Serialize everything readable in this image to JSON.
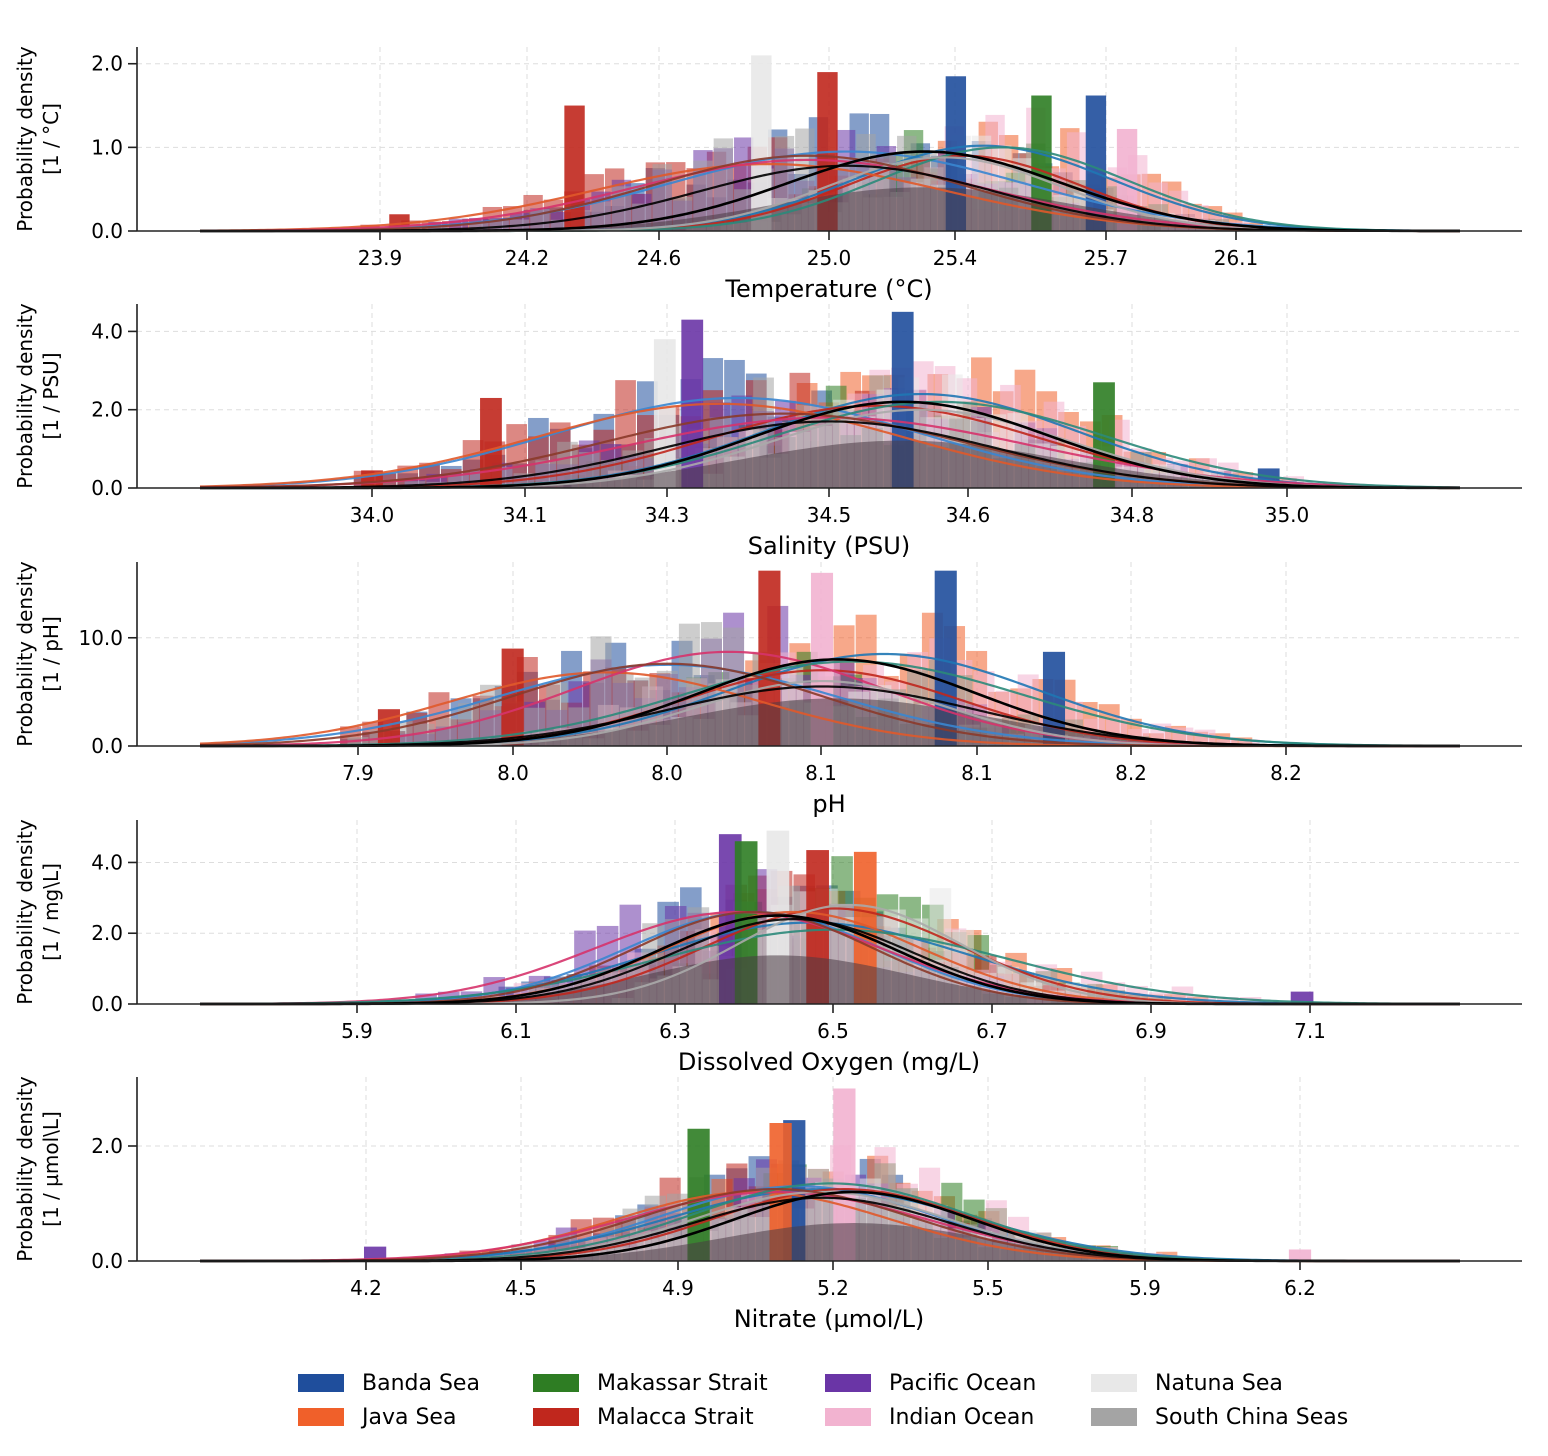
{
  "chart_data": {
    "type": "histogram+kde (stacked panels)",
    "series": [
      {
        "name": "Banda Sea",
        "color": "#1f4e9c"
      },
      {
        "name": "Java Sea",
        "color": "#f0602a"
      },
      {
        "name": "Makassar Strait",
        "color": "#2e7d23"
      },
      {
        "name": "Malacca Strait",
        "color": "#c0271d"
      },
      {
        "name": "Pacific Ocean",
        "color": "#6a35a6"
      },
      {
        "name": "Indian Ocean",
        "color": "#f2b3d0"
      },
      {
        "name": "Natuna Sea",
        "color": "#e8e8e8"
      },
      {
        "name": "South China Seas",
        "color": "#a4a4a4"
      }
    ],
    "kde_colors": [
      "#000000",
      "#3a86d0",
      "#1f77b4",
      "#c0271d",
      "#e0592a",
      "#d6336c",
      "#2b8a7a",
      "#aaaaaa",
      "#8b3a2a"
    ],
    "legend": {
      "placement": "bottom-center",
      "items": [
        "Banda Sea",
        "Makassar Strait",
        "Pacific Ocean",
        "Natuna Sea",
        "Java Sea",
        "Malacca Strait",
        "Indian Ocean",
        "South China Seas"
      ]
    },
    "panels": [
      {
        "id": "temperature",
        "xlabel": "Temperature (°C)",
        "ylabel_line1": "Probability density",
        "ylabel_line2": "[1 / °C]",
        "xlim": [
          23.5,
          26.8
        ],
        "ylim": [
          0,
          2.2
        ],
        "xticks": [
          23.9,
          24.2,
          24.6,
          25.0,
          25.4,
          25.7,
          26.1
        ],
        "xtick_labels": [
          "23.9",
          "24.2",
          "24.6",
          "25.0",
          "25.4",
          "25.7",
          "26.1"
        ],
        "yticks": [
          0.0,
          1.0,
          2.0
        ],
        "ytick_labels": [
          "0.0",
          "1.0",
          "2.0"
        ],
        "kde_overall": {
          "mean": 25.3,
          "sd": 0.35,
          "peak": 0.95
        },
        "kde_curves": [
          {
            "mean": 25.1,
            "sd": 0.45,
            "peak": 0.95
          },
          {
            "mean": 25.45,
            "sd": 0.33,
            "peak": 1.02
          },
          {
            "mean": 25.4,
            "sd": 0.3,
            "peak": 0.9
          },
          {
            "mean": 24.9,
            "sd": 0.45,
            "peak": 0.8
          },
          {
            "mean": 25.0,
            "sd": 0.45,
            "peak": 0.85
          },
          {
            "mean": 25.5,
            "sd": 0.32,
            "peak": 1.0
          },
          {
            "mean": 25.35,
            "sd": 0.3,
            "peak": 0.88
          },
          {
            "mean": 25.0,
            "sd": 0.4,
            "peak": 0.9
          },
          {
            "mean": 25.1,
            "sd": 0.38,
            "peak": 0.78
          }
        ],
        "hist_peaks": [
          {
            "series": "Banda Sea",
            "x": 25.38,
            "y": 1.85
          },
          {
            "series": "Natuna Sea",
            "x": 24.88,
            "y": 2.1
          },
          {
            "series": "Malacca Strait",
            "x": 25.05,
            "y": 1.9
          },
          {
            "series": "Makassar Strait",
            "x": 25.6,
            "y": 1.62
          },
          {
            "series": "Banda Sea",
            "x": 25.74,
            "y": 1.62
          },
          {
            "series": "Malacca Strait",
            "x": 24.4,
            "y": 1.5
          },
          {
            "series": "Indian Ocean",
            "x": 25.82,
            "y": 1.22
          },
          {
            "series": "Malacca Strait",
            "x": 23.95,
            "y": 0.2
          }
        ]
      },
      {
        "id": "salinity",
        "xlabel": "Salinity (PSU)",
        "ylabel_line1": "Probability density",
        "ylabel_line2": "[1 / PSU]",
        "xlim": [
          33.75,
          35.2
        ],
        "ylim": [
          0,
          4.7
        ],
        "xticks": [
          34.0,
          34.15,
          34.3,
          34.5,
          34.65,
          34.8,
          35.0
        ],
        "xtick_labels": [
          "34.0",
          "34.1",
          "34.3",
          "34.5",
          "34.6",
          "34.8",
          "35.0"
        ],
        "yticks": [
          0.0,
          2.0,
          4.0
        ],
        "ytick_labels": [
          "0.0",
          "2.0",
          "4.0"
        ],
        "kde_overall": {
          "mean": 34.58,
          "sd": 0.16,
          "peak": 2.2
        },
        "kde_curves": [
          {
            "mean": 34.4,
            "sd": 0.2,
            "peak": 2.3
          },
          {
            "mean": 34.6,
            "sd": 0.17,
            "peak": 2.4
          },
          {
            "mean": 34.55,
            "sd": 0.18,
            "peak": 2.1
          },
          {
            "mean": 34.38,
            "sd": 0.2,
            "peak": 2.15
          },
          {
            "mean": 34.5,
            "sd": 0.22,
            "peak": 1.8
          },
          {
            "mean": 34.62,
            "sd": 0.18,
            "peak": 2.2
          },
          {
            "mean": 34.6,
            "sd": 0.16,
            "peak": 2.0
          },
          {
            "mean": 34.45,
            "sd": 0.2,
            "peak": 1.9
          },
          {
            "mean": 34.5,
            "sd": 0.18,
            "peak": 1.7
          }
        ],
        "hist_peaks": [
          {
            "series": "Banda Sea",
            "x": 34.58,
            "y": 4.5
          },
          {
            "series": "Pacific Ocean",
            "x": 34.35,
            "y": 4.3
          },
          {
            "series": "Natuna Sea",
            "x": 34.32,
            "y": 3.8
          },
          {
            "series": "Makassar Strait",
            "x": 34.8,
            "y": 2.7
          },
          {
            "series": "Malacca Strait",
            "x": 34.13,
            "y": 2.3
          },
          {
            "series": "Banda Sea",
            "x": 34.98,
            "y": 0.5
          },
          {
            "series": "Malacca Strait",
            "x": 34.0,
            "y": 0.45
          }
        ]
      },
      {
        "id": "ph",
        "xlabel": "pH",
        "ylabel_line1": "Probability density",
        "ylabel_line2": "[1 / pH]",
        "xlim": [
          7.85,
          8.3
        ],
        "ylim": [
          0,
          17
        ],
        "xticks": [
          7.95,
          8.0,
          8.05,
          8.1,
          8.15,
          8.2,
          8.25
        ],
        "xtick_labels": [
          "7.9",
          "8.0",
          "8.0",
          "8.1",
          "8.1",
          "8.2",
          "8.2"
        ],
        "yticks": [
          0.0,
          10.0
        ],
        "ytick_labels": [
          "0.0",
          "10.0"
        ],
        "kde_overall": {
          "mean": 8.105,
          "sd": 0.045,
          "peak": 8.0
        },
        "kde_curves": [
          {
            "mean": 8.05,
            "sd": 0.055,
            "peak": 7.5
          },
          {
            "mean": 8.12,
            "sd": 0.05,
            "peak": 8.5
          },
          {
            "mean": 8.1,
            "sd": 0.045,
            "peak": 7.0
          },
          {
            "mean": 8.03,
            "sd": 0.05,
            "peak": 6.8
          },
          {
            "mean": 8.07,
            "sd": 0.05,
            "peak": 8.7
          },
          {
            "mean": 8.11,
            "sd": 0.055,
            "peak": 7.8
          },
          {
            "mean": 8.1,
            "sd": 0.04,
            "peak": 6.0
          },
          {
            "mean": 8.05,
            "sd": 0.05,
            "peak": 7.6
          },
          {
            "mean": 8.1,
            "sd": 0.05,
            "peak": 5.5
          }
        ],
        "hist_peaks": [
          {
            "series": "Malacca Strait",
            "x": 8.083,
            "y": 16.2
          },
          {
            "series": "Banda Sea",
            "x": 8.14,
            "y": 16.2
          },
          {
            "series": "Indian Ocean",
            "x": 8.1,
            "y": 16.0
          },
          {
            "series": "Malacca Strait",
            "x": 8.0,
            "y": 9.0
          },
          {
            "series": "Banda Sea",
            "x": 8.175,
            "y": 8.7
          },
          {
            "series": "Malacca Strait",
            "x": 7.96,
            "y": 3.4
          }
        ]
      },
      {
        "id": "dissolved_oxygen",
        "xlabel": "Dissolved Oxygen (mg/L)",
        "ylabel_line1": "Probability density",
        "ylabel_line2": "[1 / mg\\L]",
        "xlim": [
          5.55,
          7.3
        ],
        "ylim": [
          0,
          5.2
        ],
        "xticks": [
          5.9,
          6.1,
          6.3,
          6.5,
          6.7,
          6.9,
          7.1
        ],
        "xtick_labels": [
          "5.9",
          "6.1",
          "6.3",
          "6.5",
          "6.7",
          "6.9",
          "7.1"
        ],
        "yticks": [
          0.0,
          2.0,
          4.0
        ],
        "ytick_labels": [
          "0.0",
          "2.0",
          "4.0"
        ],
        "kde_overall": {
          "mean": 6.43,
          "sd": 0.15,
          "peak": 2.5
        },
        "kde_curves": [
          {
            "mean": 6.4,
            "sd": 0.16,
            "peak": 2.6
          },
          {
            "mean": 6.47,
            "sd": 0.2,
            "peak": 2.3
          },
          {
            "mean": 6.5,
            "sd": 0.16,
            "peak": 2.7
          },
          {
            "mean": 6.45,
            "sd": 0.16,
            "peak": 2.6
          },
          {
            "mean": 6.38,
            "sd": 0.18,
            "peak": 2.6
          },
          {
            "mean": 6.5,
            "sd": 0.22,
            "peak": 2.1
          },
          {
            "mean": 6.52,
            "sd": 0.14,
            "peak": 2.8
          },
          {
            "mean": 6.4,
            "sd": 0.15,
            "peak": 2.6
          },
          {
            "mean": 6.45,
            "sd": 0.15,
            "peak": 2.4
          }
        ],
        "hist_peaks": [
          {
            "series": "Natuna Sea",
            "x": 6.43,
            "y": 4.9
          },
          {
            "series": "Pacific Ocean",
            "x": 6.37,
            "y": 4.8
          },
          {
            "series": "Makassar Strait",
            "x": 6.39,
            "y": 4.6
          },
          {
            "series": "Malacca Strait",
            "x": 6.48,
            "y": 4.35
          },
          {
            "series": "Java Sea",
            "x": 6.54,
            "y": 4.3
          },
          {
            "series": "Pacific Ocean",
            "x": 7.09,
            "y": 0.35
          }
        ]
      },
      {
        "id": "nitrate",
        "xlabel": "Nitrate (µmol/L)",
        "ylabel_line1": "Probability density",
        "ylabel_line2": "[1 / µmol\\L]",
        "xlim": [
          3.8,
          6.6
        ],
        "ylim": [
          0,
          3.2
        ],
        "xticks": [
          4.2,
          4.55,
          4.9,
          5.2,
          5.55,
          5.9,
          6.25
        ],
        "xtick_labels": [
          "4.2",
          "4.5",
          "4.9",
          "5.2",
          "5.5",
          "5.9",
          "6.2"
        ],
        "yticks": [
          0.0,
          2.0
        ],
        "ytick_labels": [
          "0.0",
          "2.0"
        ],
        "kde_overall": {
          "mean": 5.27,
          "sd": 0.26,
          "peak": 1.2
        },
        "kde_curves": [
          {
            "mean": 5.15,
            "sd": 0.3,
            "peak": 1.3
          },
          {
            "mean": 5.2,
            "sd": 0.33,
            "peak": 1.25
          },
          {
            "mean": 5.25,
            "sd": 0.28,
            "peak": 1.25
          },
          {
            "mean": 5.05,
            "sd": 0.3,
            "peak": 1.2
          },
          {
            "mean": 5.1,
            "sd": 0.33,
            "peak": 1.2
          },
          {
            "mean": 5.22,
            "sd": 0.3,
            "peak": 1.35
          },
          {
            "mean": 5.2,
            "sd": 0.28,
            "peak": 1.2
          },
          {
            "mean": 5.1,
            "sd": 0.3,
            "peak": 1.25
          },
          {
            "mean": 5.2,
            "sd": 0.28,
            "peak": 1.1
          }
        ],
        "hist_peaks": [
          {
            "series": "Indian Ocean",
            "x": 5.25,
            "y": 3.0
          },
          {
            "series": "Banda Sea",
            "x": 5.14,
            "y": 2.45
          },
          {
            "series": "Makassar Strait",
            "x": 4.93,
            "y": 2.3
          },
          {
            "series": "Java Sea",
            "x": 5.11,
            "y": 2.4
          },
          {
            "series": "Pacific Ocean",
            "x": 4.22,
            "y": 0.25
          },
          {
            "series": "Indian Ocean",
            "x": 6.25,
            "y": 0.2
          }
        ]
      }
    ]
  }
}
